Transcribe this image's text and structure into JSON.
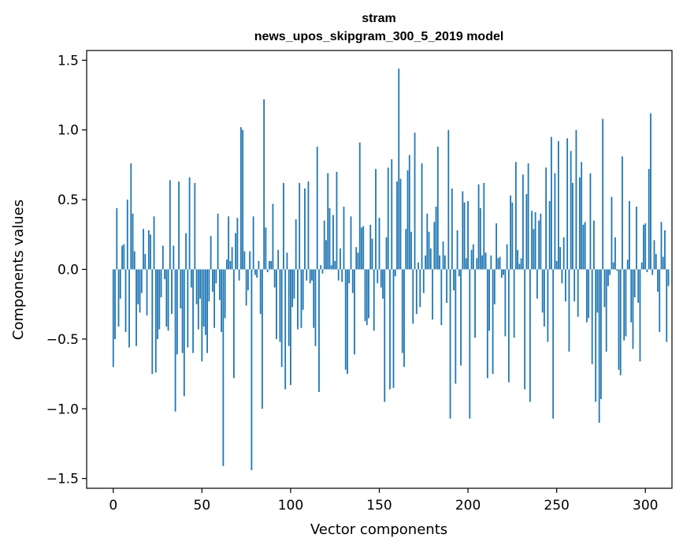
{
  "chart_data": {
    "type": "bar",
    "title_lines": [
      "stram",
      "news_upos_skipgram_300_5_2019 model"
    ],
    "xlabel": "Vector components",
    "ylabel": "Components values",
    "xlim": [
      -15,
      315
    ],
    "ylim": [
      -1.57,
      1.57
    ],
    "x_ticks": [
      0,
      50,
      100,
      150,
      200,
      250,
      300
    ],
    "x_tick_labels": [
      "0",
      "50",
      "100",
      "150",
      "200",
      "250",
      "300"
    ],
    "y_ticks": [
      -1.5,
      -1.0,
      -0.5,
      0.0,
      0.5,
      1.0,
      1.5
    ],
    "y_tick_labels": [
      "−1.5",
      "−1.0",
      "−0.5",
      "0.0",
      "0.5",
      "1.0",
      "1.5"
    ],
    "bar_color": "#1f77b4",
    "values": [
      -0.7,
      -0.5,
      0.44,
      -0.41,
      -0.21,
      0.17,
      0.18,
      -0.45,
      0.5,
      -0.56,
      0.76,
      0.4,
      0.13,
      -0.55,
      -0.25,
      -0.31,
      -0.17,
      0.29,
      0.11,
      -0.33,
      0.28,
      0.25,
      -0.75,
      0.38,
      -0.74,
      -0.5,
      -0.43,
      -0.2,
      0.17,
      -0.07,
      -0.41,
      -0.44,
      0.64,
      -0.32,
      0.17,
      -1.02,
      -0.61,
      0.63,
      -0.28,
      -0.6,
      -0.91,
      0.26,
      -0.56,
      0.66,
      -0.13,
      -0.6,
      0.62,
      -0.25,
      -0.43,
      -0.21,
      -0.66,
      -0.41,
      -0.47,
      -0.6,
      -0.23,
      0.24,
      -0.16,
      -0.42,
      -0.1,
      0.4,
      -0.22,
      -0.45,
      -1.41,
      -0.35,
      0.07,
      0.38,
      0.06,
      0.16,
      -0.78,
      0.26,
      0.37,
      -0.08,
      1.02,
      1.0,
      0.13,
      -0.26,
      -0.15,
      0.13,
      -1.44,
      0.38,
      -0.04,
      -0.06,
      0.06,
      -0.32,
      -1.0,
      1.22,
      0.3,
      -0.02,
      0.06,
      0.06,
      0.47,
      -0.13,
      -0.5,
      0.14,
      -0.52,
      -0.7,
      0.62,
      -0.86,
      0.12,
      -0.55,
      -0.83,
      -0.27,
      -0.21,
      0.36,
      -0.43,
      0.62,
      -0.42,
      -0.29,
      0.58,
      -0.08,
      0.63,
      -0.1,
      -0.08,
      -0.42,
      -0.55,
      0.88,
      -0.88,
      0.03,
      -0.03,
      0.35,
      0.21,
      0.69,
      0.44,
      0.03,
      0.39,
      0.06,
      0.7,
      -0.08,
      0.15,
      -0.09,
      0.45,
      -0.72,
      -0.75,
      -0.1,
      0.38,
      -0.17,
      -0.61,
      0.16,
      0.12,
      0.91,
      0.3,
      0.31,
      -0.37,
      -0.4,
      -0.35,
      0.32,
      0.22,
      -0.44,
      0.72,
      -0.1,
      0.37,
      -0.13,
      -0.21,
      -0.95,
      0.23,
      0.73,
      -0.86,
      0.79,
      -0.85,
      -0.05,
      0.63,
      1.44,
      0.65,
      -0.6,
      -0.7,
      0.29,
      0.71,
      0.82,
      0.27,
      -0.39,
      0.98,
      -0.32,
      0.05,
      -0.27,
      0.76,
      -0.17,
      0.1,
      0.4,
      0.27,
      0.15,
      -0.36,
      0.34,
      0.45,
      0.88,
      0.1,
      -0.4,
      0.2,
      0.1,
      -0.24,
      1.0,
      -1.07,
      0.58,
      -0.15,
      -0.82,
      0.28,
      -0.05,
      -0.69,
      0.56,
      0.48,
      0.08,
      0.49,
      -1.07,
      0.14,
      0.18,
      -0.49,
      0.08,
      0.61,
      0.44,
      0.1,
      0.62,
      0.12,
      -0.78,
      -0.44,
      0.1,
      -0.75,
      -0.25,
      0.33,
      0.08,
      0.09,
      -0.06,
      -0.04,
      -0.48,
      0.18,
      -0.81,
      0.53,
      0.48,
      -0.49,
      0.77,
      0.14,
      0.04,
      0.08,
      0.68,
      -0.86,
      0.54,
      0.76,
      -0.95,
      0.42,
      0.29,
      0.41,
      -0.21,
      0.35,
      0.4,
      -0.31,
      -0.41,
      0.73,
      -0.52,
      0.49,
      0.95,
      -1.07,
      0.69,
      0.06,
      0.92,
      0.16,
      -0.1,
      0.23,
      -0.23,
      0.94,
      -0.59,
      0.85,
      0.62,
      -0.23,
      1.0,
      -0.34,
      0.66,
      0.77,
      0.32,
      0.34,
      -0.38,
      -0.35,
      0.69,
      -0.68,
      0.35,
      -0.95,
      -0.31,
      -1.1,
      -0.93,
      1.08,
      -0.27,
      -0.59,
      -0.12,
      -0.04,
      0.52,
      0.05,
      0.23,
      -0.01,
      -0.72,
      -0.76,
      0.81,
      -0.51,
      -0.48,
      0.07,
      0.49,
      -0.38,
      -0.57,
      -0.2,
      0.45,
      -0.24,
      -0.66,
      0.05,
      0.32,
      0.33,
      -0.02,
      0.72,
      1.12,
      -0.04,
      0.21,
      0.11,
      -0.16,
      -0.45,
      0.34,
      0.09,
      0.28,
      -0.52,
      -0.12
    ]
  }
}
